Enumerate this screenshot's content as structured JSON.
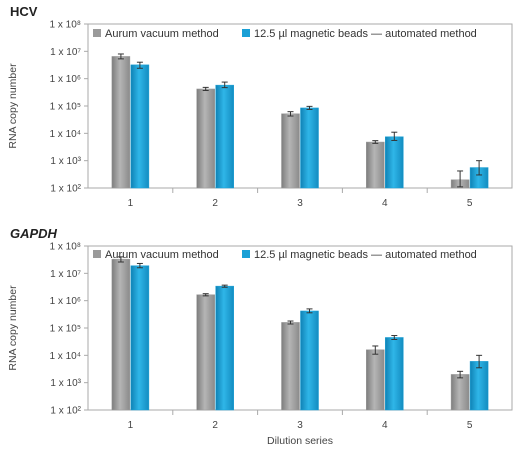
{
  "colors": {
    "gray": "#9a9a9a",
    "blue": "#1aa0d6",
    "frame": "#aaaaaa",
    "error": "#333333"
  },
  "chart_data": [
    {
      "type": "bar",
      "title": "HCV",
      "title_italic": false,
      "categories": [
        "1",
        "2",
        "3",
        "4",
        "5"
      ],
      "y_scale": "log",
      "ylim": [
        100,
        100000000
      ],
      "ylabel": "RNA copy number",
      "xlabel": "",
      "ytick_values": [
        100,
        1000,
        10000,
        100000,
        1000000,
        10000000,
        100000000
      ],
      "ytick_labels": [
        "1 x 10²",
        "1 x 10³",
        "1 x 10⁴",
        "1 x 10⁵",
        "1 x 10⁶",
        "1 x 10⁷",
        "1 x 10⁸"
      ],
      "legend": "top",
      "grid": false,
      "series": [
        {
          "name": "Aurum vacuum method",
          "color": "#9a9a9a",
          "values": [
            6500000,
            420000,
            52000,
            4800,
            200
          ],
          "err_low": [
            5300000,
            370000,
            43000,
            4300,
            110
          ],
          "err_high": [
            8000000,
            480000,
            62000,
            5400,
            420
          ]
        },
        {
          "name": "12.5 µl magnetic beads — automated method",
          "color": "#1aa0d6",
          "values": [
            3200000,
            580000,
            85000,
            7500,
            560
          ],
          "err_low": [
            2400000,
            470000,
            75000,
            5500,
            300
          ],
          "err_high": [
            4000000,
            750000,
            97000,
            11000,
            1000
          ]
        }
      ]
    },
    {
      "type": "bar",
      "title": "GAPDH",
      "title_italic": true,
      "categories": [
        "1",
        "2",
        "3",
        "4",
        "5"
      ],
      "y_scale": "log",
      "ylim": [
        100,
        100000000
      ],
      "ylabel": "RNA copy number",
      "xlabel": "Dilution series",
      "ytick_values": [
        100,
        1000,
        10000,
        100000,
        1000000,
        10000000,
        100000000
      ],
      "ytick_labels": [
        "1 x 10²",
        "1 x 10³",
        "1 x 10⁴",
        "1 x 10⁵",
        "1 x 10⁶",
        "1 x 10⁷",
        "1 x 10⁸"
      ],
      "legend": "top",
      "grid": false,
      "series": [
        {
          "name": "Aurum vacuum method",
          "color": "#9a9a9a",
          "values": [
            33000000,
            1650000,
            160000,
            16000,
            2000
          ],
          "err_low": [
            26000000,
            1500000,
            140000,
            11000,
            1500
          ],
          "err_high": [
            40000000,
            1800000,
            180000,
            22000,
            2600
          ]
        },
        {
          "name": "12.5 µl magnetic beads — automated method",
          "color": "#1aa0d6",
          "values": [
            19000000,
            3400000,
            420000,
            45000,
            6000
          ],
          "err_low": [
            16000000,
            3100000,
            360000,
            38000,
            3500
          ],
          "err_high": [
            23000000,
            3700000,
            500000,
            53000,
            10000
          ]
        }
      ]
    }
  ]
}
